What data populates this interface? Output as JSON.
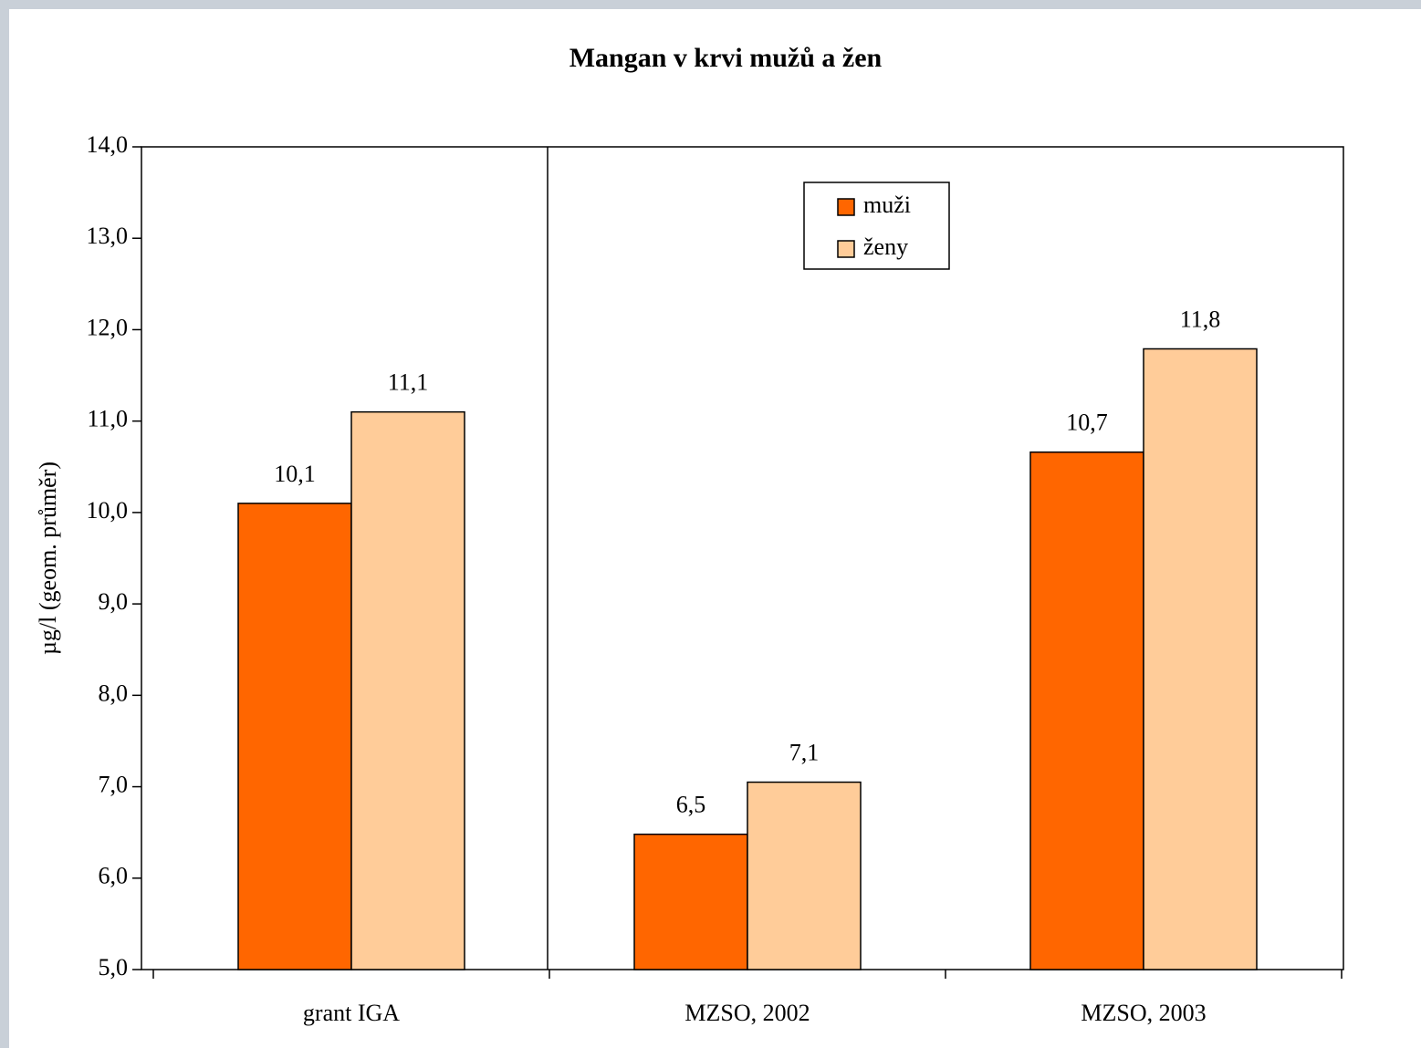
{
  "chart_data": {
    "type": "bar",
    "title": "Mangan v krvi mužů a žen",
    "y_label": "µg/l (geom. průměr)",
    "categories": [
      "grant IGA",
      "MZSO, 2002",
      "MZSO, 2003"
    ],
    "series": [
      {
        "name": "muži",
        "color": "#ff6600",
        "values": [
          10.1,
          6.48,
          10.66
        ],
        "value_labels": [
          "10,1",
          "6,5",
          "10,7"
        ]
      },
      {
        "name": "ženy",
        "color": "#ffcc99",
        "values": [
          11.1,
          7.05,
          11.79
        ],
        "value_labels": [
          "11,1",
          "7,1",
          "11,8"
        ]
      }
    ],
    "ylim": [
      5,
      14
    ],
    "yticks": [
      {
        "value": 5,
        "label": "5,0"
      },
      {
        "value": 6,
        "label": "6,0"
      },
      {
        "value": 7,
        "label": "7,0"
      },
      {
        "value": 8,
        "label": "8,0"
      },
      {
        "value": 9,
        "label": "9,0"
      },
      {
        "value": 10,
        "label": "10,0"
      },
      {
        "value": 11,
        "label": "11,0"
      },
      {
        "value": 12,
        "label": "12,0"
      },
      {
        "value": 13,
        "label": "13,0"
      },
      {
        "value": 14,
        "label": "14,0"
      }
    ],
    "grid": false,
    "legend": "top"
  }
}
